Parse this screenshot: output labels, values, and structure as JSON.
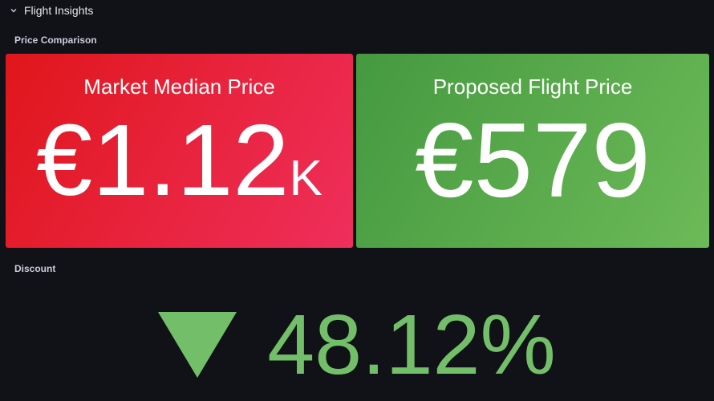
{
  "row": {
    "title": "Flight Insights"
  },
  "panels": [
    {
      "title": "Price Comparison",
      "stats": [
        {
          "title": "Market Median Price",
          "prefix": "€",
          "value": "1.12",
          "suffix": "K"
        },
        {
          "title": "Proposed Flight Price",
          "prefix": "€",
          "value": "579"
        }
      ]
    },
    {
      "title": "Discount",
      "value": "48.12",
      "suffix": "%"
    }
  ]
}
